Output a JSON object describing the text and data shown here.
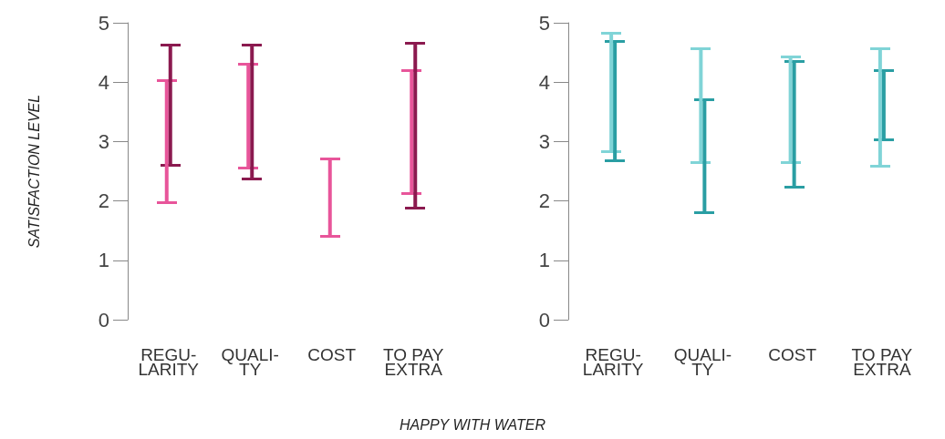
{
  "chart_data": [
    {
      "type": "bar",
      "ylabel": "SATISFACTION LEVEL",
      "xlabel": "HAPPY WITH WATER",
      "categories": [
        "REGU-\nLARITY",
        "QUALI-\nTY",
        "COST",
        "TO PAY\nEXTRA"
      ],
      "ylim": [
        0,
        5
      ],
      "yticks": [
        0,
        1,
        2,
        3,
        4,
        5
      ],
      "series": [
        {
          "color": "#e8559a",
          "base": [
            1.97,
            2.55,
            1.4,
            2.12
          ],
          "values": [
            2.05,
            1.75,
            1.3,
            2.08
          ]
        },
        {
          "color": "#8b1a4f",
          "base": [
            2.6,
            2.37,
            null,
            1.88
          ],
          "values": [
            2.02,
            2.25,
            null,
            2.77
          ]
        }
      ]
    },
    {
      "type": "bar",
      "categories": [
        "REGU-\nLARITY",
        "QUALI-\nTY",
        "COST",
        "TO PAY\nEXTRA"
      ],
      "ylim": [
        0,
        5
      ],
      "yticks": [
        0,
        1,
        2,
        3,
        4,
        5
      ],
      "series": [
        {
          "color": "#80d4d7",
          "base": [
            2.83,
            2.65,
            2.65,
            2.58
          ],
          "values": [
            2.0,
            1.92,
            1.77,
            1.99
          ]
        },
        {
          "color": "#2a9ea3",
          "base": [
            2.67,
            1.8,
            2.23,
            3.03
          ],
          "values": [
            2.01,
            1.9,
            2.12,
            1.17
          ]
        }
      ]
    }
  ]
}
